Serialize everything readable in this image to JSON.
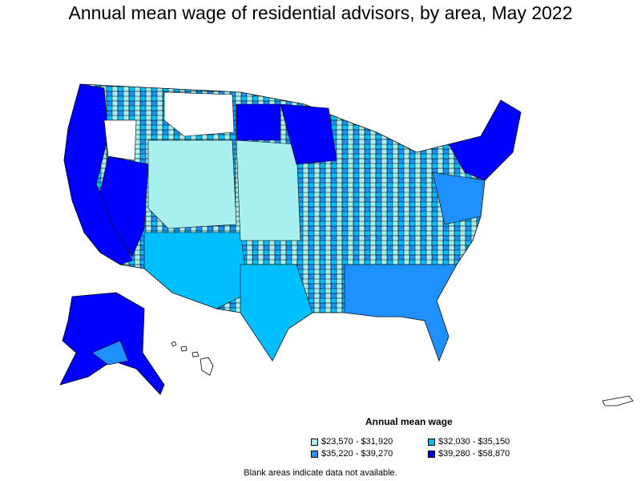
{
  "title": "Annual mean wage of residential advisors, by area, May 2022",
  "legend": {
    "title": "Annual mean wage",
    "items": [
      {
        "label": "$23,570 - $31,920",
        "color": "#a8f0f0"
      },
      {
        "label": "$32,030 - $35,150",
        "color": "#00bfff"
      },
      {
        "label": "$35,220 - $39,270",
        "color": "#1e90ff"
      },
      {
        "label": "$39,280 - $58,870",
        "color": "#0000ff"
      }
    ]
  },
  "footnote": "Blank areas indicate data not available.",
  "colors": {
    "blank": "#ffffff",
    "border": "#000000"
  }
}
